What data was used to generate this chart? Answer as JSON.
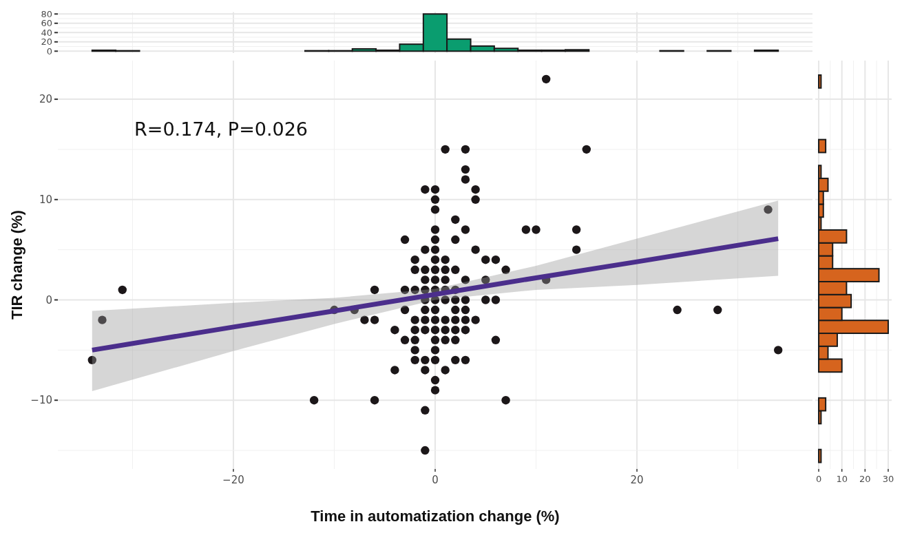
{
  "chart_data": [
    {
      "type": "histogram",
      "color": "#0a9d6f",
      "bins": [
        -34,
        -31.66,
        -29.31,
        -26.97,
        -24.62,
        -22.28,
        -19.93,
        -17.59,
        -15.24,
        -12.9,
        -10.55,
        -8.21,
        -5.86,
        -3.52,
        -1.17,
        1.17,
        3.52,
        5.86,
        8.21,
        10.55,
        12.9,
        15.24,
        17.59,
        19.93,
        22.28,
        24.62,
        26.97,
        29.31,
        31.66,
        34
      ],
      "values": [
        2,
        1,
        0,
        0,
        0,
        0,
        0,
        0,
        0,
        1,
        1,
        5,
        2,
        15,
        80,
        26,
        11,
        6,
        2,
        2,
        3,
        0,
        0,
        0,
        1,
        0,
        1,
        0,
        2
      ],
      "xlim": [
        -37.4,
        37.4
      ],
      "xticks": [
        {
          "value": -20,
          "label": null
        },
        {
          "value": 0,
          "label": null
        },
        {
          "value": 20,
          "label": null
        }
      ],
      "ylim": [
        -4,
        84
      ],
      "yticks": [
        0,
        20,
        40,
        60,
        80
      ],
      "grid": true,
      "tick_labels": "y"
    },
    {
      "type": "scatter",
      "xlabel": "Time in automatization change (%)",
      "ylabel": "TIR change (%)",
      "annotations": [
        "R=0.174, P=0.026"
      ],
      "grid": true,
      "xlim": [
        -37.4,
        37.4
      ],
      "xticks": [
        {
          "value": -20,
          "label": "−20"
        },
        0,
        20
      ],
      "ylim": [
        -16.85,
        23.85
      ],
      "yticks": [
        {
          "value": -10,
          "label": "−10"
        },
        0,
        10,
        20
      ],
      "series": [
        {
          "type": "scatter",
          "marker": "circle",
          "color": "#1c1719",
          "x": [
            11,
            1,
            3,
            15,
            3,
            3,
            -1,
            0,
            4,
            0,
            4,
            0,
            33,
            2,
            0,
            3,
            9,
            10,
            14,
            -3,
            0,
            2,
            -1,
            0,
            4,
            14,
            -2,
            0,
            1,
            5,
            6,
            -2,
            -1,
            0,
            1,
            2,
            7,
            -1,
            0,
            1,
            3,
            5,
            11,
            -31,
            -6,
            -3,
            -2,
            -1,
            0,
            1,
            2,
            -1,
            0,
            1,
            2,
            3,
            5,
            6,
            -10,
            -8,
            -3,
            -1,
            0,
            2,
            3,
            24,
            28,
            -33,
            -7,
            -6,
            -2,
            -1,
            0,
            1,
            2,
            3,
            4,
            -4,
            -2,
            -1,
            0,
            1,
            2,
            3,
            -3,
            -2,
            0,
            1,
            2,
            6,
            -2,
            0,
            34,
            -34,
            -2,
            -1,
            0,
            2,
            3,
            -4,
            -1,
            1,
            0,
            0,
            -12,
            -6,
            7,
            -1,
            -1
          ],
          "values": [
            22,
            15,
            15,
            15,
            13,
            12,
            11,
            11,
            11,
            10,
            10,
            9,
            9,
            8,
            7,
            7,
            7,
            7,
            7,
            6,
            6,
            6,
            5,
            5,
            5,
            5,
            4,
            4,
            4,
            4,
            4,
            3,
            3,
            3,
            3,
            3,
            3,
            2,
            2,
            2,
            2,
            2,
            2,
            1,
            1,
            1,
            1,
            1,
            1,
            1,
            1,
            0,
            0,
            0,
            0,
            0,
            0,
            0,
            -1,
            -1,
            -1,
            -1,
            -1,
            -1,
            -1,
            -1,
            -1,
            -2,
            -2,
            -2,
            -2,
            -2,
            -2,
            -2,
            -2,
            -2,
            -2,
            -3,
            -3,
            -3,
            -3,
            -3,
            -3,
            -3,
            -4,
            -4,
            -4,
            -4,
            -4,
            -4,
            -5,
            -5,
            -5,
            -6,
            -6,
            -6,
            -6,
            -6,
            -6,
            -7,
            -7,
            -7,
            -8,
            -9,
            -10,
            -10,
            -10,
            -11,
            -15
          ]
        },
        {
          "type": "line",
          "marker": "none",
          "color": "#4b2e8c",
          "x": [
            -34,
            -20,
            -10,
            0,
            10,
            20,
            34
          ],
          "values": [
            -5.0,
            -2.7,
            -1.1,
            0.55,
            2.2,
            3.8,
            6.1
          ],
          "lower": [
            -9.1,
            -5.1,
            -2.4,
            0.0,
            1.0,
            1.5,
            2.4
          ],
          "upper": [
            -1.1,
            -0.3,
            0.2,
            1.1,
            3.4,
            6.1,
            9.9
          ]
        }
      ]
    },
    {
      "type": "histogram",
      "orientation": "horizontal",
      "color": "#d6641e",
      "bins": [
        -16.2,
        -14.91,
        -13.63,
        -12.34,
        -11.05,
        -9.77,
        -8.48,
        -7.19,
        -5.9,
        -4.62,
        -3.33,
        -2.04,
        -0.76,
        0.53,
        1.82,
        3.11,
        4.39,
        5.68,
        6.97,
        8.25,
        9.54,
        10.83,
        12.11,
        13.4,
        14.69,
        15.98,
        17.26,
        18.55,
        19.84,
        21.12,
        22.41
      ],
      "values": [
        1,
        0,
        0,
        1,
        3,
        0,
        0,
        10,
        4,
        8,
        30,
        10,
        14,
        12,
        26,
        6,
        6,
        12,
        1,
        2,
        2,
        4,
        1,
        0,
        3,
        0,
        0,
        0,
        0,
        1
      ],
      "ylim": [
        -16.85,
        23.85
      ],
      "yticks": [
        {
          "value": -10,
          "label": null
        },
        {
          "value": 0,
          "label": null
        },
        {
          "value": 10,
          "label": null
        },
        {
          "value": 20,
          "label": null
        }
      ],
      "xlim": [
        -1.5,
        31.5
      ],
      "xticks": [
        0,
        10,
        20,
        30
      ],
      "grid": true,
      "tick_labels": "x"
    }
  ]
}
